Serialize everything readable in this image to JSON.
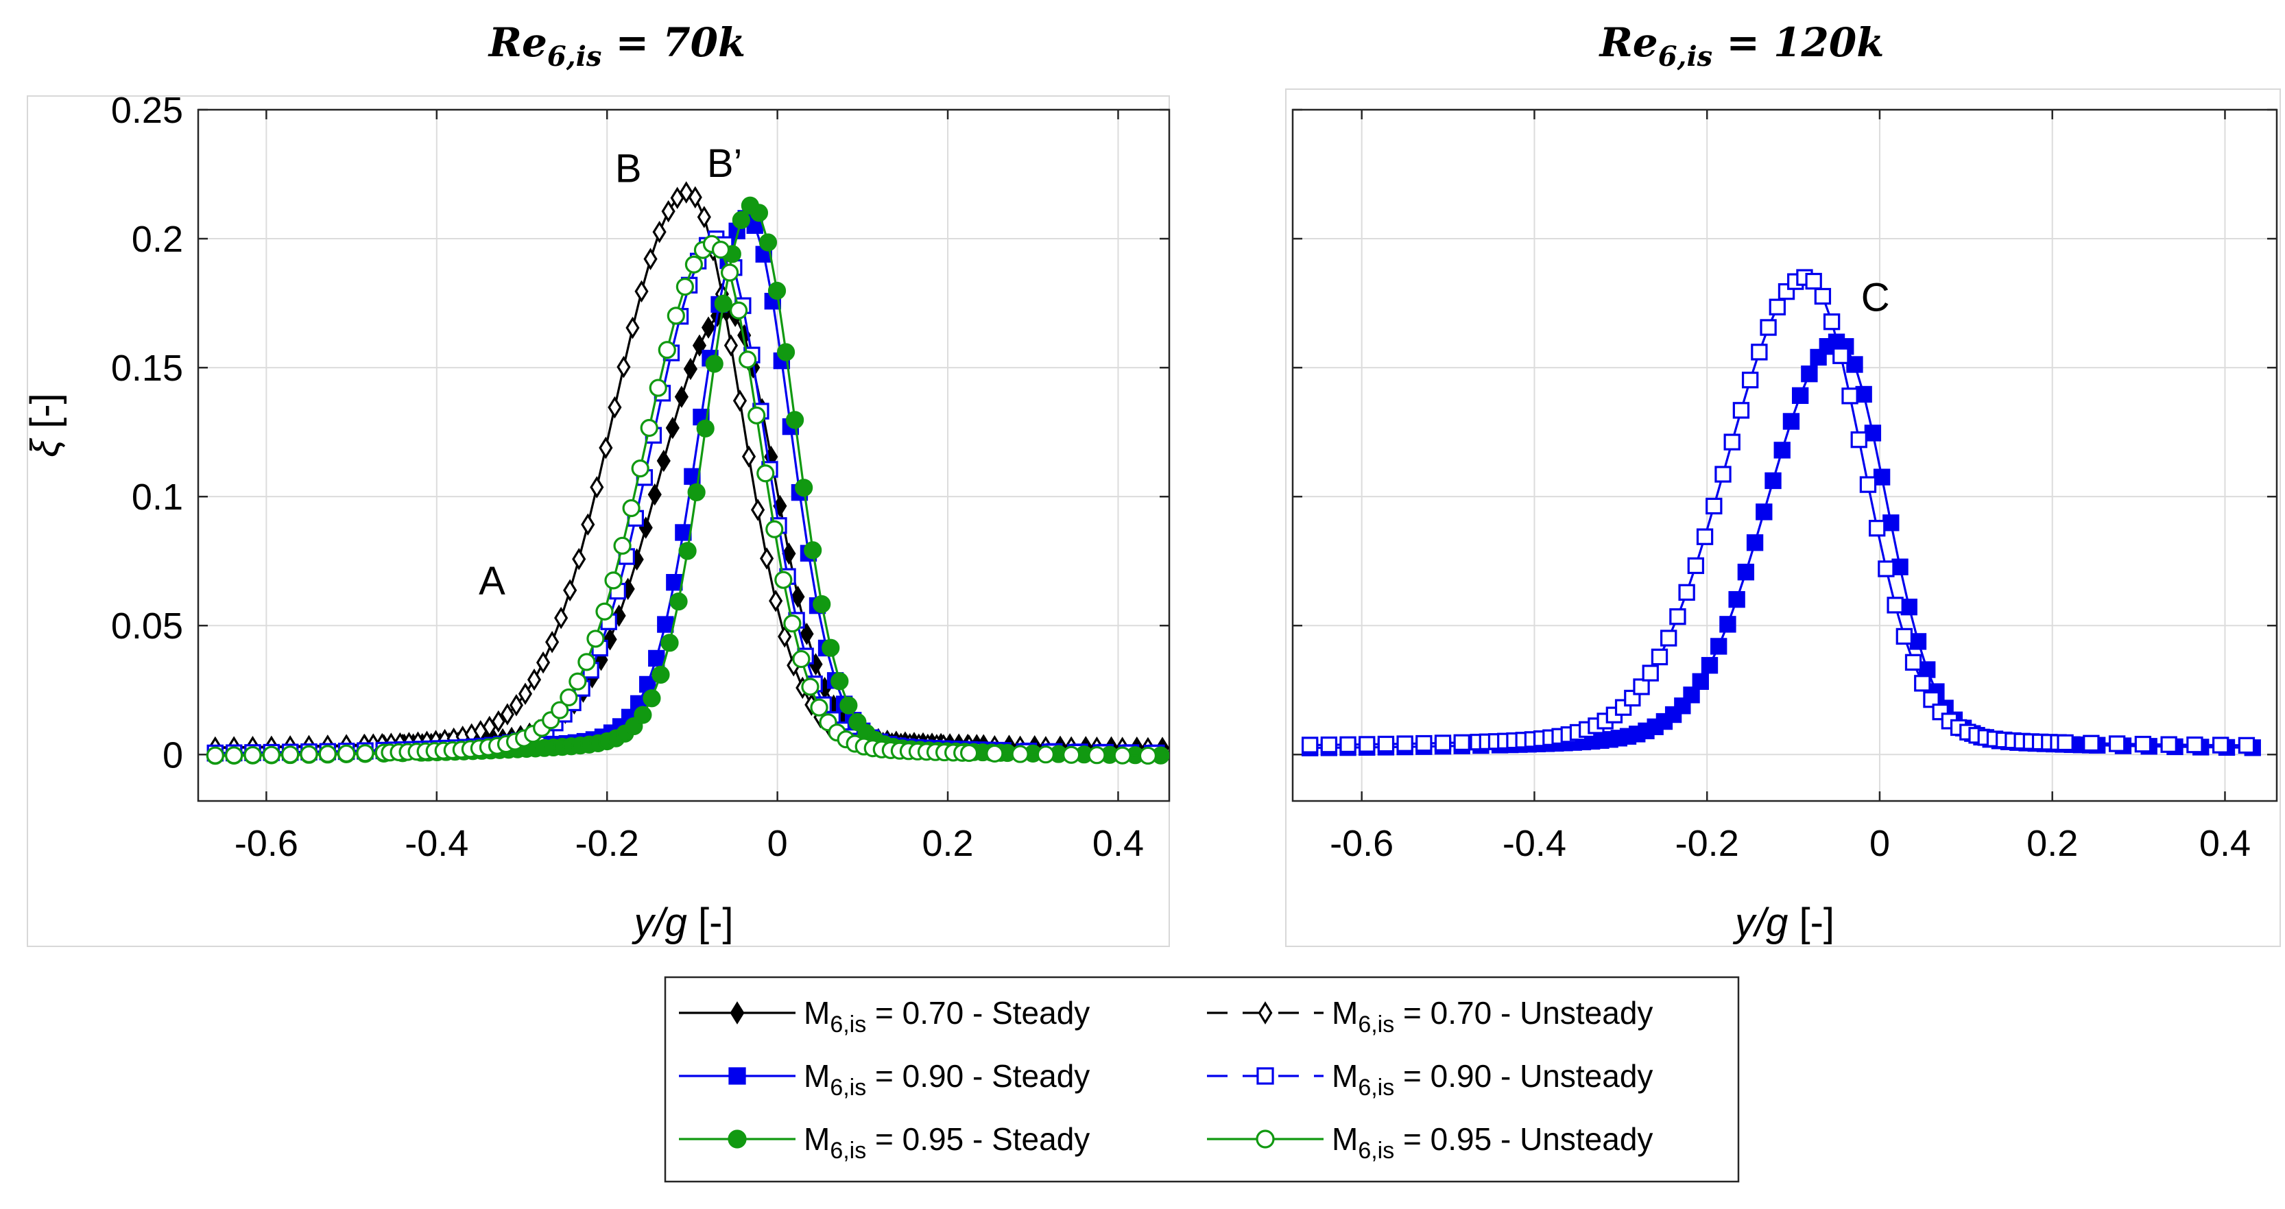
{
  "chart_data": [
    {
      "type": "line",
      "title": "Re_6,is = 70k",
      "title_parts": {
        "base": "Re",
        "sub": "6,is",
        "rest": " = 70k"
      },
      "xlabel": "y/g [-]",
      "ylabel": "ξ [-]",
      "xlim": [
        -0.68,
        0.46
      ],
      "ylim": [
        -0.018,
        0.25
      ],
      "xticks": [
        -0.6,
        -0.4,
        -0.2,
        0,
        0.2,
        0.4
      ],
      "xtick_labels": [
        "-0.6",
        "-0.4",
        "-0.2",
        "0",
        "0.2",
        "0.4"
      ],
      "yticks": [
        0,
        0.05,
        0.1,
        0.15,
        0.2,
        0.25
      ],
      "ytick_labels": [
        "0",
        "0.05",
        "0.1",
        "0.15",
        "0.2",
        "0.25"
      ],
      "grid": true,
      "annotations": [
        {
          "text": "A",
          "x": -0.335,
          "y": 0.062
        },
        {
          "text": "B",
          "x": -0.175,
          "y": 0.222
        },
        {
          "text": "B’",
          "x": -0.062,
          "y": 0.224
        }
      ],
      "series": [
        {
          "name": "M6,is = 0.70 - Steady",
          "color": "#000000",
          "marker": "diamond",
          "fill": true,
          "model": {
            "peak": 0.172,
            "mu": -0.058,
            "sl": 0.08,
            "sr": 0.055,
            "base": 0.002
          }
        },
        {
          "name": "M6,is = 0.70 - Unsteady",
          "color": "#000000",
          "marker": "diamond",
          "fill": false,
          "model": {
            "peak": 0.218,
            "mu": -0.105,
            "sl": 0.085,
            "sr": 0.062,
            "base": 0.002
          }
        },
        {
          "name": "M6,is = 0.90 - Steady",
          "color": "#0000ee",
          "marker": "square",
          "fill": true,
          "model": {
            "peak": 0.208,
            "mu": -0.035,
            "sl": 0.055,
            "sr": 0.05,
            "base": 0.0
          }
        },
        {
          "name": "M6,is = 0.90 - Unsteady",
          "color": "#0000ee",
          "marker": "square",
          "fill": false,
          "model": {
            "peak": 0.2,
            "mu": -0.07,
            "sl": 0.075,
            "sr": 0.055,
            "base": 0.0
          }
        },
        {
          "name": "M6,is = 0.95 - Steady",
          "color": "#119911",
          "marker": "circle",
          "fill": true,
          "model": {
            "peak": 0.213,
            "mu": -0.03,
            "sl": 0.052,
            "sr": 0.05,
            "base": -0.001
          }
        },
        {
          "name": "M6,is = 0.95 - Unsteady",
          "color": "#119911",
          "marker": "circle",
          "fill": false,
          "model": {
            "peak": 0.198,
            "mu": -0.075,
            "sl": 0.078,
            "sr": 0.055,
            "base": -0.001
          }
        }
      ]
    },
    {
      "type": "line",
      "title": "Re_6,is = 120k",
      "title_parts": {
        "base": "Re",
        "sub": "6,is",
        "rest": " = 120k"
      },
      "xlabel": "y/g [-]",
      "ylabel": "",
      "xlim": [
        -0.68,
        0.46
      ],
      "ylim": [
        -0.018,
        0.25
      ],
      "xticks": [
        -0.6,
        -0.4,
        -0.2,
        0,
        0.2,
        0.4
      ],
      "xtick_labels": [
        "-0.6",
        "-0.4",
        "-0.2",
        "0",
        "0.2",
        "0.4"
      ],
      "yticks": [
        0,
        0.05,
        0.1,
        0.15,
        0.2,
        0.25
      ],
      "ytick_labels": [],
      "grid": true,
      "annotations": [
        {
          "text": "C",
          "x": -0.005,
          "y": 0.172
        }
      ],
      "series": [
        {
          "name": "M6,is = 0.90 - Steady",
          "color": "#0000ee",
          "marker": "square",
          "fill": true,
          "model": {
            "peak": 0.16,
            "mu": -0.048,
            "sl": 0.08,
            "sr": 0.055,
            "base": 0.002
          }
        },
        {
          "name": "M6,is = 0.90 - Unsteady",
          "color": "#0000ee",
          "marker": "square",
          "fill": false,
          "model": {
            "peak": 0.185,
            "mu": -0.085,
            "sl": 0.09,
            "sr": 0.065,
            "base": 0.003
          }
        }
      ]
    }
  ],
  "legend": {
    "entries": [
      {
        "pre": "M",
        "sub": "6,is",
        "post": " = 0.70 - Steady",
        "color": "#000000",
        "marker": "diamond",
        "fill": true,
        "dashed": false
      },
      {
        "pre": "M",
        "sub": "6,is",
        "post": " = 0.70 - Unsteady",
        "color": "#000000",
        "marker": "diamond",
        "fill": false,
        "dashed": true
      },
      {
        "pre": "M",
        "sub": "6,is",
        "post": " = 0.90 - Steady",
        "color": "#0000ee",
        "marker": "square",
        "fill": true,
        "dashed": false
      },
      {
        "pre": "M",
        "sub": "6,is",
        "post": " = 0.90 - Unsteady",
        "color": "#0000ee",
        "marker": "square",
        "fill": false,
        "dashed": true
      },
      {
        "pre": "M",
        "sub": "6,is",
        "post": " = 0.95 - Steady",
        "color": "#119911",
        "marker": "circle",
        "fill": true,
        "dashed": false
      },
      {
        "pre": "M",
        "sub": "6,is",
        "post": " = 0.95 - Unsteady",
        "color": "#119911",
        "marker": "circle",
        "fill": false,
        "dashed": false
      }
    ]
  }
}
